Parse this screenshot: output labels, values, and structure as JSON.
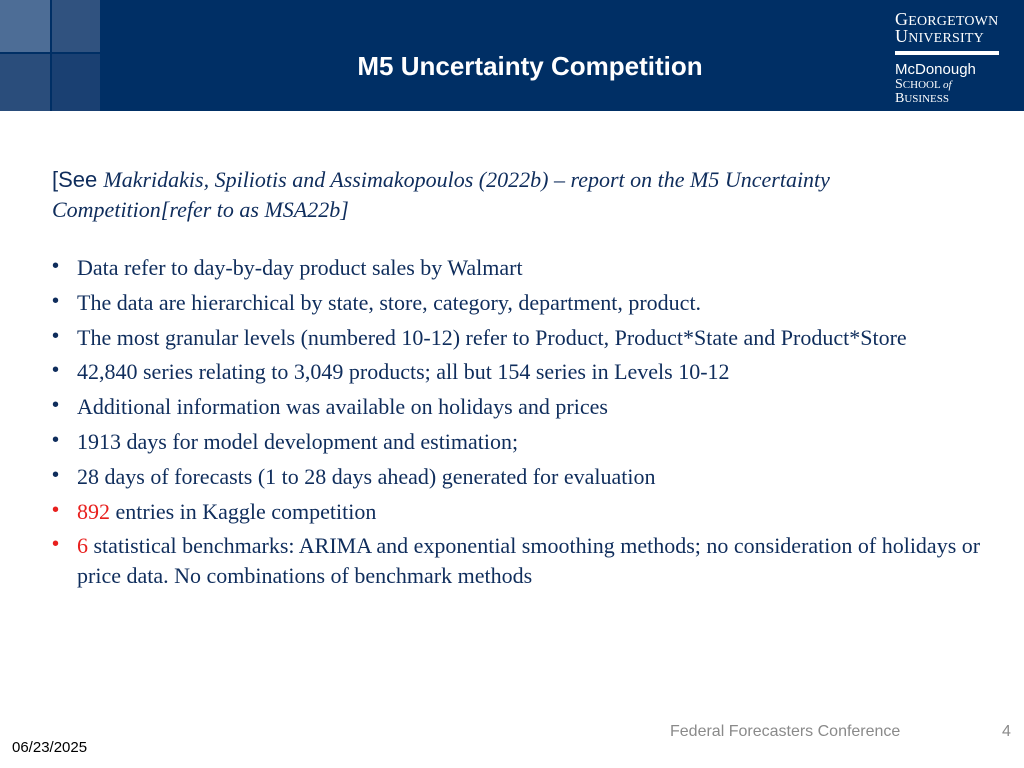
{
  "header": {
    "title": "M5 Uncertainty Competition",
    "logo": {
      "line1_initial": "G",
      "line1_rest": "EORGETOWN",
      "line2_initial": "U",
      "line2_rest": "NIVERSITY",
      "line3": "McDonough",
      "line4_initial": "S",
      "line4_rest": "CHOOL",
      "line4_of": "of",
      "line4_initial2": "B",
      "line4_rest2": "USINESS"
    },
    "colors": {
      "band": "#002f65",
      "text": "#ffffff"
    }
  },
  "intro": {
    "open": "[See ",
    "authors": "Makridakis, Spiliotis and Assimakopoulos (2022b)",
    "rest": " – report on the M5 Uncertainty Competition[refer to as MSA22b]"
  },
  "bullets": [
    {
      "text": " Data refer to day-by-day product sales by Walmart"
    },
    {
      "text": "The data are hierarchical by state, store, category, department, product."
    },
    {
      "text": "The most granular levels (numbered 10-12) refer to Product, Product*State and Product*Store"
    },
    {
      "text": "42,840 series relating to 3,049 products; all but 154 series in Levels 10-12"
    },
    {
      "text": "Additional information was available on holidays and prices"
    },
    {
      "text": "1913 days for model development and estimation;"
    },
    {
      "text": "28 days of forecasts (1 to 28 days ahead) generated for evaluation"
    },
    {
      "highlight": "892",
      "text": " entries in Kaggle competition"
    },
    {
      "highlight": "6",
      "text": " statistical benchmarks: ARIMA and exponential smoothing methods; no consideration of holidays or price data. No combinations of benchmark methods"
    }
  ],
  "footer": {
    "conference": "Federal Forecasters Conference",
    "page": "4",
    "date": "06/23/2025"
  },
  "colors": {
    "body_text": "#0f2d5c",
    "highlight": "#e8201e"
  }
}
